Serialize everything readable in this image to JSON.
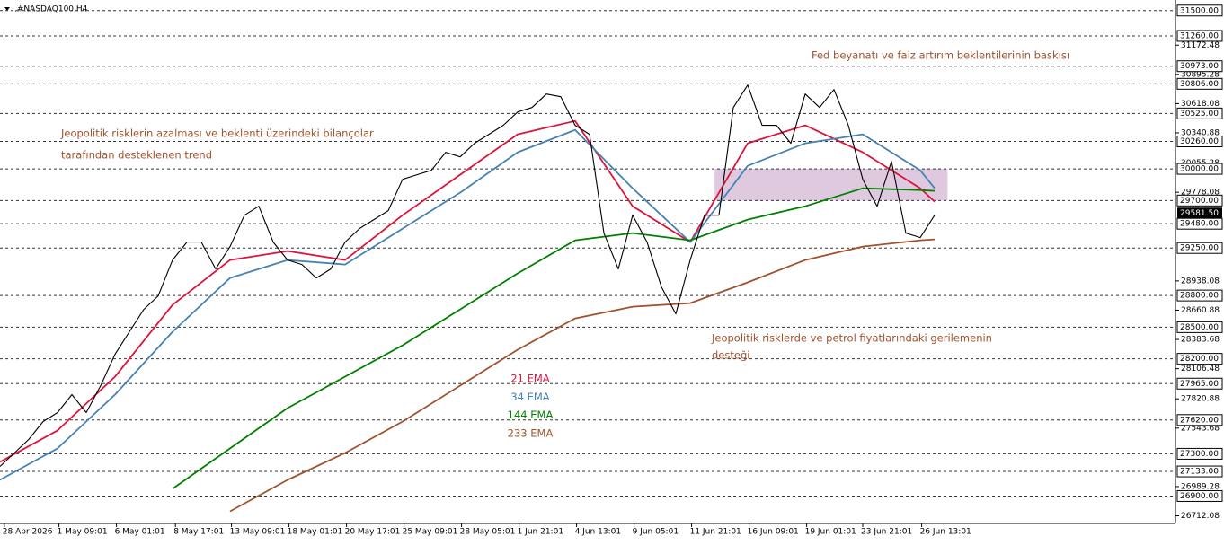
{
  "chart_data": {
    "type": "line",
    "title": ".#NASDAQ100,H4",
    "price": {
      "color": "#000000",
      "x": [
        0,
        1,
        2,
        3,
        4,
        5,
        6,
        7,
        8,
        9,
        10,
        11,
        12,
        13,
        14,
        15,
        16,
        17,
        18,
        19,
        20,
        21,
        22,
        23,
        24,
        25,
        26,
        27,
        28,
        29,
        30,
        31,
        32,
        33,
        34,
        35,
        36,
        37,
        38,
        39,
        40,
        41,
        42,
        43,
        44,
        45,
        46,
        47,
        48,
        49,
        50,
        51,
        52,
        53,
        54,
        55,
        56,
        57,
        58,
        59,
        60,
        61,
        62,
        63,
        64,
        65
      ],
      "values": [
        27180,
        27308,
        27436,
        27606,
        27691,
        27861,
        27691,
        27946,
        28243,
        28456,
        28668,
        28796,
        29136,
        29306,
        29306,
        29051,
        29264,
        29561,
        29646,
        29306,
        29136,
        29094,
        28966,
        29051,
        29306,
        29434,
        29519,
        29604,
        29901,
        29944,
        29986,
        30157,
        30114,
        30242,
        30327,
        30412,
        30539,
        30582,
        30709,
        30684,
        30412,
        30327,
        29391,
        29051,
        29561,
        29306,
        28881,
        28626,
        29136,
        29561,
        29561,
        30582,
        30794,
        30412,
        30412,
        30242,
        30709,
        30582,
        30752,
        30412,
        29901,
        29646,
        30071,
        29391,
        29349,
        29561
      ]
    },
    "series": [
      {
        "name": "21 EMA",
        "color": "#dc143c",
        "x": [
          0,
          4,
          8,
          12,
          16,
          20,
          24,
          28,
          32,
          36,
          40,
          44,
          48,
          52,
          56,
          60,
          64,
          65
        ],
        "values": [
          27223,
          27521,
          28031,
          28711,
          29136,
          29221,
          29136,
          29561,
          29944,
          30327,
          30454,
          29646,
          29306,
          30242,
          30412,
          30157,
          29816,
          29689
        ]
      },
      {
        "name": "34 EMA",
        "color": "#4682b4",
        "x": [
          0,
          4,
          8,
          12,
          16,
          20,
          24,
          28,
          32,
          36,
          40,
          44,
          48,
          52,
          56,
          60,
          64,
          65
        ],
        "values": [
          27053,
          27351,
          27861,
          28456,
          28966,
          29136,
          29094,
          29434,
          29774,
          30157,
          30369,
          29816,
          29306,
          30029,
          30242,
          30327,
          29986,
          29816
        ]
      },
      {
        "name": "144 EMA",
        "color": "#008000",
        "x": [
          0,
          4,
          8,
          12,
          16,
          20,
          24,
          28,
          32,
          36,
          40,
          44,
          48,
          52,
          56,
          60,
          64,
          65
        ],
        "values": [
          null,
          null,
          null,
          26968,
          27351,
          27733,
          28031,
          28328,
          28668,
          29009,
          29323,
          29391,
          29323,
          29519,
          29646,
          29816,
          29799,
          29791
        ]
      },
      {
        "name": "233 EMA",
        "color": "#a0522d",
        "x": [
          0,
          4,
          8,
          12,
          16,
          20,
          24,
          28,
          32,
          36,
          40,
          44,
          48,
          52,
          56,
          60,
          64,
          65
        ],
        "values": [
          null,
          null,
          null,
          null,
          26755,
          27053,
          27308,
          27606,
          27946,
          28286,
          28583,
          28694,
          28728,
          28924,
          29136,
          29264,
          29323,
          29332
        ]
      }
    ],
    "zone": {
      "color": "#d8bfd8",
      "x": [
        49.7,
        65.9
      ],
      "y": [
        30000,
        29700
      ]
    },
    "levels": [
      {
        "value": 31500,
        "label": "31500.00"
      },
      {
        "value": 31260,
        "label": "31260.00"
      },
      {
        "value": 30973,
        "label": "30973.00"
      },
      {
        "value": 30806,
        "label": "30806.00"
      },
      {
        "value": 30525,
        "label": "30525.00"
      },
      {
        "value": 30260,
        "label": "30260.00"
      },
      {
        "value": 30000,
        "label": "30000.00"
      },
      {
        "value": 29700,
        "label": "29700.00"
      },
      {
        "value": 29480,
        "label": "29480.00"
      },
      {
        "value": 29250,
        "label": "29250.00"
      },
      {
        "value": 28800,
        "label": "28800.00"
      },
      {
        "value": 28500,
        "label": "28500.00"
      },
      {
        "value": 28200,
        "label": "28200.00"
      },
      {
        "value": 27965,
        "label": "27965.00"
      },
      {
        "value": 27620,
        "label": "27620.00"
      },
      {
        "value": 27300,
        "label": "27300.00"
      },
      {
        "value": 27133,
        "label": "27133.00"
      },
      {
        "value": 26900,
        "label": "26900.00"
      }
    ],
    "last_price": {
      "value": 29581.5,
      "label": "29581.50"
    },
    "ylim": [
      26640,
      31600
    ],
    "yticks": [
      31172.48,
      30895.28,
      30618.08,
      30340.88,
      30055.28,
      29778.08,
      28938.08,
      28660.88,
      28383.68,
      28106.48,
      27820.88,
      27543.68,
      26989.28,
      26712.08
    ],
    "xlim": [
      0,
      81.75
    ],
    "xticks": [
      {
        "value": 0.3,
        "label": "28 Apr 2026"
      },
      {
        "value": 4.1,
        "label": "1 May 09:01"
      },
      {
        "value": 8.1,
        "label": "6 May 01:01"
      },
      {
        "value": 12.2,
        "label": "8 May 17:01"
      },
      {
        "value": 16.1,
        "label": "13 May 09:01"
      },
      {
        "value": 20.1,
        "label": "18 May 01:01"
      },
      {
        "value": 24.1,
        "label": "20 May 17:01"
      },
      {
        "value": 28.1,
        "label": "25 May 09:01"
      },
      {
        "value": 32.1,
        "label": "28 May 05:01"
      },
      {
        "value": 36.1,
        "label": "1 Jun 21:01"
      },
      {
        "value": 40.1,
        "label": "4 Jun 13:01"
      },
      {
        "value": 44.1,
        "label": "9 Jun 05:01"
      },
      {
        "value": 48.1,
        "label": "11 Jun 21:01"
      },
      {
        "value": 52.1,
        "label": "16 Jun 09:01"
      },
      {
        "value": 56.1,
        "label": "19 Jun 01:01"
      },
      {
        "value": 60,
        "label": "23 Jun 21:01"
      },
      {
        "value": 64.1,
        "label": "26 Jun 13:01"
      }
    ],
    "annotations": [
      "Jeopolitik risklerin azalması ve beklenti üzerindeki bilançolar",
      "tarafından desteklenen trend",
      "Fed beyanatı ve faiz artırım beklentilerinin baskısı",
      "Jeopolitik risklerde ve petrol fiyatlarındaki gerilemenin",
      "desteği"
    ],
    "annotation_color": "#a0522d"
  }
}
